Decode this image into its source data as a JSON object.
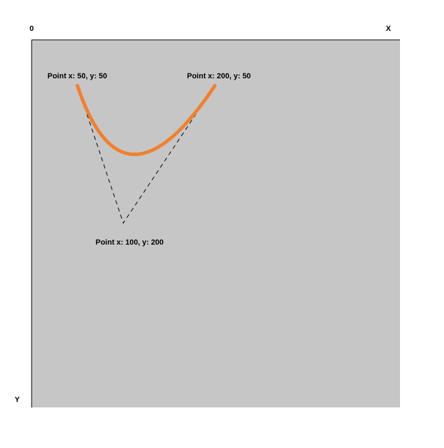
{
  "axes": {
    "origin_label": "0",
    "x_label": "X",
    "y_label": "Y"
  },
  "points": [
    {
      "x": 50,
      "y": 50,
      "label": "Point x: 50, y: 50",
      "role": "start"
    },
    {
      "x": 100,
      "y": 200,
      "label": "Point x: 100, y: 200",
      "role": "control"
    },
    {
      "x": 200,
      "y": 50,
      "label": "Point x: 200, y: 50",
      "role": "end"
    }
  ],
  "colors": {
    "canvas_background": "#c6c6c6",
    "curve": "#f08030",
    "control_lines": "#000000",
    "axis": "#000000"
  }
}
